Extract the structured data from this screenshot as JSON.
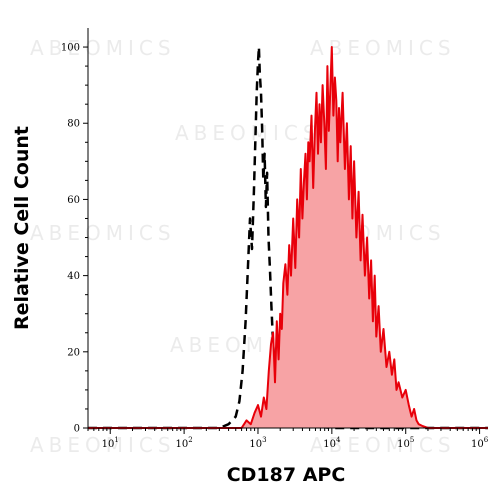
{
  "chart_data": {
    "type": "area",
    "title": "",
    "xlabel": "CD187 APC",
    "ylabel": "Relative Cell Count",
    "x_scale": "log",
    "xlim": [
      5,
      1300000
    ],
    "ylim": [
      0,
      105
    ],
    "x_ticks": [
      {
        "value": 10,
        "base": "10",
        "exp": "1"
      },
      {
        "value": 100,
        "base": "10",
        "exp": "2"
      },
      {
        "value": 1000,
        "base": "10",
        "exp": "3"
      },
      {
        "value": 10000,
        "base": "10",
        "exp": "4"
      },
      {
        "value": 100000,
        "base": "10",
        "exp": "5"
      },
      {
        "value": 1000000,
        "base": "10",
        "exp": "6"
      }
    ],
    "y_ticks": [
      0,
      20,
      40,
      60,
      80,
      100
    ],
    "grid": false,
    "watermark": "ABEOMICS",
    "series": [
      {
        "style": "dashed-black-line",
        "color": "#000000",
        "x": [
          5,
          300,
          400,
          500,
          560,
          620,
          680,
          730,
          780,
          830,
          880,
          920,
          960,
          1000,
          1030,
          1060,
          1100,
          1140,
          1180,
          1230,
          1280,
          1330,
          1390,
          1450,
          1520,
          1600,
          1700,
          1800,
          1900,
          2050,
          2200,
          2400,
          2700,
          3000,
          3400,
          4000,
          5000,
          7000,
          10000,
          1300000
        ],
        "y": [
          0,
          0,
          1,
          3,
          7,
          15,
          28,
          42,
          55,
          47,
          62,
          75,
          88,
          96,
          100,
          93,
          88,
          78,
          65,
          72,
          58,
          67,
          50,
          42,
          32,
          22,
          15,
          9,
          6,
          4,
          2,
          5,
          3,
          1,
          2,
          0.5,
          1,
          0.3,
          0,
          0
        ]
      },
      {
        "style": "red-filled",
        "color": "#e8000a",
        "fill": "#f7a3a5",
        "x": [
          5,
          600,
          700,
          800,
          900,
          1000,
          1100,
          1200,
          1300,
          1400,
          1500,
          1600,
          1700,
          1800,
          1900,
          2000,
          2100,
          2200,
          2350,
          2500,
          2650,
          2800,
          3000,
          3200,
          3400,
          3600,
          3800,
          4000,
          4200,
          4400,
          4600,
          4800,
          5000,
          5300,
          5600,
          5900,
          6200,
          6500,
          6800,
          7100,
          7500,
          7900,
          8300,
          8700,
          9100,
          9500,
          10000,
          10500,
          11000,
          11500,
          12000,
          12500,
          13000,
          14000,
          15000,
          16000,
          17000,
          18000,
          19000,
          20000,
          21500,
          23000,
          24500,
          26000,
          28000,
          30000,
          32000,
          34000,
          36000,
          38000,
          40000,
          43000,
          46000,
          50000,
          55000,
          60000,
          65000,
          70000,
          75000,
          80000,
          90000,
          100000,
          110000,
          120000,
          130000,
          140000,
          150000,
          170000,
          200000,
          1300000
        ],
        "y": [
          0,
          0,
          2,
          1,
          4,
          6,
          3,
          8,
          5,
          15,
          22,
          25,
          12,
          28,
          18,
          30,
          26,
          38,
          43,
          35,
          48,
          40,
          55,
          42,
          60,
          50,
          68,
          55,
          65,
          72,
          60,
          75,
          70,
          82,
          63,
          78,
          88,
          72,
          85,
          75,
          90,
          80,
          68,
          95,
          78,
          88,
          100,
          82,
          92,
          86,
          70,
          84,
          75,
          88,
          68,
          80,
          60,
          74,
          55,
          70,
          50,
          62,
          44,
          56,
          40,
          50,
          34,
          44,
          28,
          40,
          24,
          32,
          20,
          26,
          16,
          20,
          14,
          18,
          10,
          12,
          8,
          10,
          6,
          3,
          5,
          2,
          1,
          0.5,
          0,
          0
        ]
      }
    ]
  }
}
